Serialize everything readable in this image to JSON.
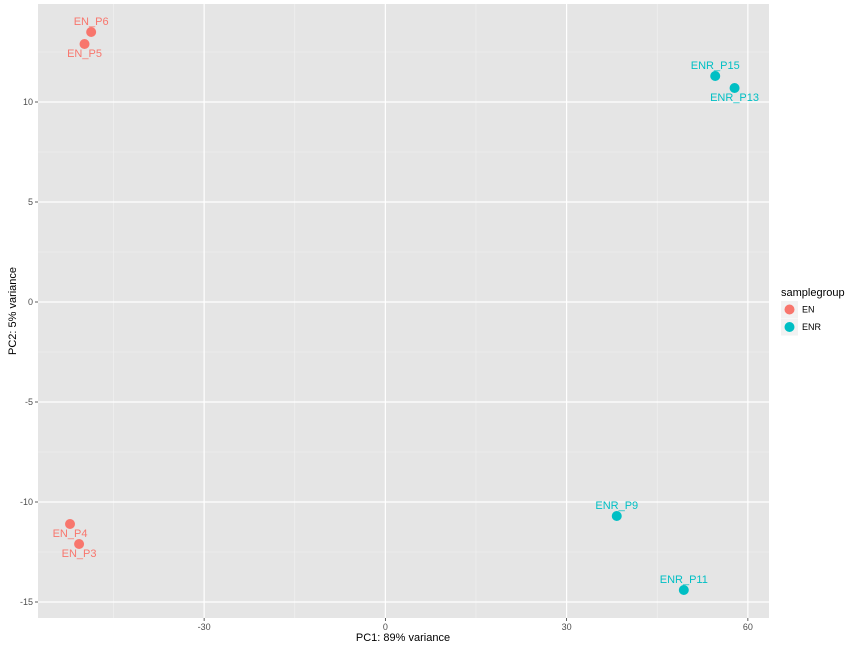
{
  "chart_data": {
    "type": "scatter",
    "title": "",
    "xlabel": "PC1: 89% variance",
    "ylabel": "PC2: 5% variance",
    "xlim": [
      -57.5,
      63.5
    ],
    "ylim": [
      -15.8,
      14.9
    ],
    "x_ticks": [
      -30,
      0,
      30,
      60
    ],
    "x_tick_labels": [
      "-30",
      "0",
      "30",
      "60"
    ],
    "y_ticks": [
      -15,
      -10,
      -5,
      0,
      5,
      10
    ],
    "y_tick_labels": [
      "-15",
      "-10",
      "-5",
      "0",
      "5",
      "10"
    ],
    "grid": true,
    "legend": {
      "title": "samplegroup",
      "placement": "right",
      "entries": [
        {
          "label": "EN",
          "color": "#F8766D"
        },
        {
          "label": "ENR",
          "color": "#00BFC4"
        }
      ]
    },
    "series": [
      {
        "name": "EN",
        "color": "#F8766D",
        "points": [
          {
            "label": "EN_P6",
            "x": -48.7,
            "y": 13.5,
            "label_pos": "above"
          },
          {
            "label": "EN_P5",
            "x": -49.8,
            "y": 12.9,
            "label_pos": "below"
          },
          {
            "label": "EN_P4",
            "x": -52.2,
            "y": -11.1,
            "label_pos": "below"
          },
          {
            "label": "EN_P3",
            "x": -50.7,
            "y": -12.1,
            "label_pos": "below"
          }
        ]
      },
      {
        "name": "ENR",
        "color": "#00BFC4",
        "points": [
          {
            "label": "ENR_P15",
            "x": 54.6,
            "y": 11.3,
            "label_pos": "above"
          },
          {
            "label": "ENR_P13",
            "x": 57.8,
            "y": 10.7,
            "label_pos": "below"
          },
          {
            "label": "ENR_P9",
            "x": 38.3,
            "y": -10.7,
            "label_pos": "above"
          },
          {
            "label": "ENR_P11",
            "x": 49.4,
            "y": -14.4,
            "label_pos": "above"
          }
        ]
      }
    ]
  }
}
